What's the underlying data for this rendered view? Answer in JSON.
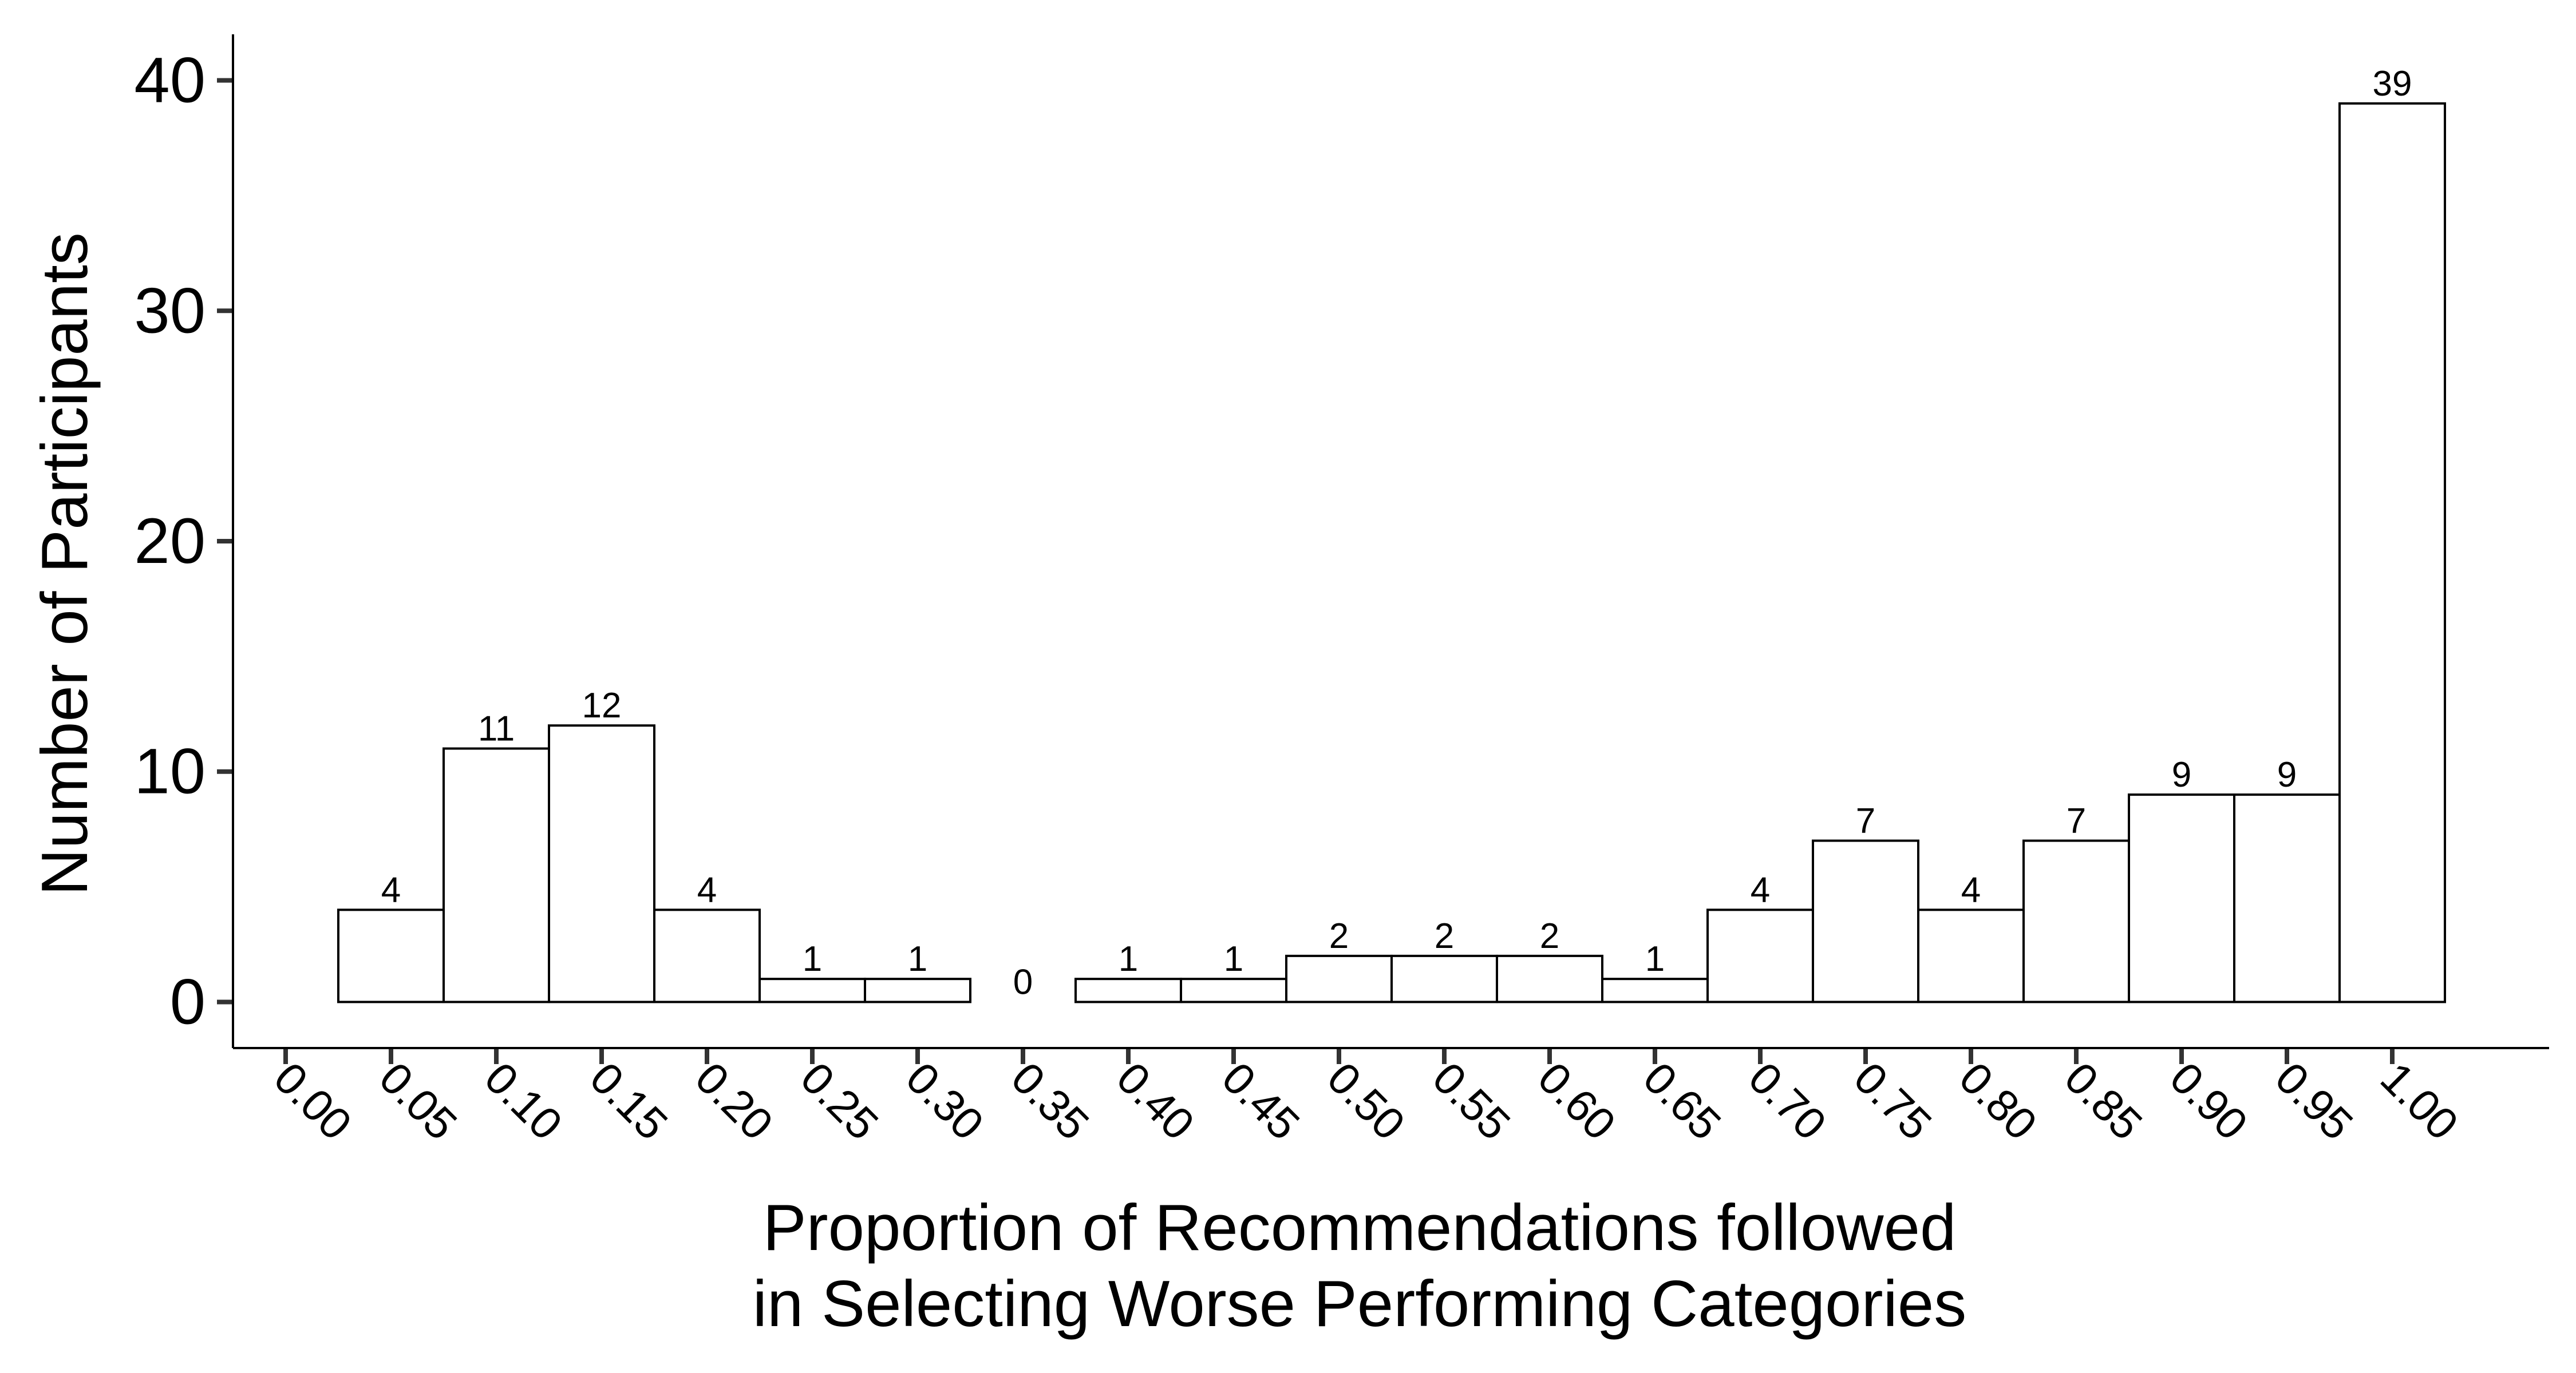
{
  "chart_data": {
    "type": "bar",
    "title": "",
    "xlabel_lines": [
      "Proportion of Recommendations followed",
      "in Selecting Worse Performing Categories"
    ],
    "ylabel": "Number of Participants",
    "x_ticks": [
      "0.00",
      "0.05",
      "0.10",
      "0.15",
      "0.20",
      "0.25",
      "0.30",
      "0.35",
      "0.40",
      "0.45",
      "0.50",
      "0.55",
      "0.60",
      "0.65",
      "0.70",
      "0.75",
      "0.80",
      "0.85",
      "0.90",
      "0.95",
      "1.00"
    ],
    "categories": [
      "0.05",
      "0.10",
      "0.15",
      "0.20",
      "0.25",
      "0.30",
      "0.35",
      "0.40",
      "0.45",
      "0.50",
      "0.55",
      "0.60",
      "0.65",
      "0.70",
      "0.75",
      "0.80",
      "0.85",
      "0.90",
      "0.95",
      "1.00"
    ],
    "values": [
      4,
      11,
      12,
      4,
      1,
      1,
      0,
      1,
      1,
      2,
      2,
      2,
      1,
      4,
      7,
      4,
      7,
      9,
      9,
      39
    ],
    "y_ticks": [
      0,
      10,
      20,
      30,
      40
    ],
    "ylim": [
      -2,
      42
    ],
    "bar_fill": "#ffffff",
    "bar_stroke": "#000000",
    "grid": false,
    "legend": "none"
  }
}
